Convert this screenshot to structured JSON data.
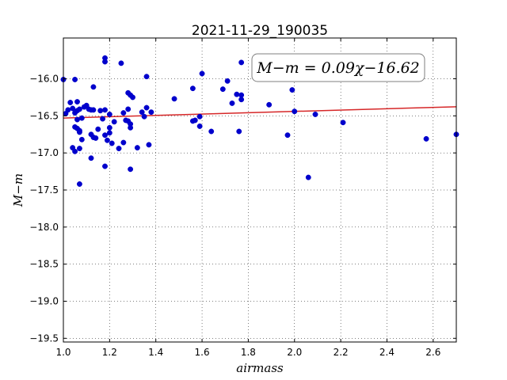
{
  "chart_data": {
    "type": "scatter",
    "title": "2021-11-29_190035",
    "xlabel": "airmass",
    "ylabel": "M−m",
    "xlim": [
      1.0,
      2.7
    ],
    "ylim": [
      -19.55,
      -15.45
    ],
    "x_ticks": [
      1.0,
      1.2,
      1.4,
      1.6,
      1.8,
      2.0,
      2.2,
      2.4,
      2.6
    ],
    "x_tick_labels": [
      "1.0",
      "1.2",
      "1.4",
      "1.6",
      "1.8",
      "2.0",
      "2.2",
      "2.4",
      "2.6"
    ],
    "y_ticks": [
      -16.0,
      -16.5,
      -17.0,
      -17.5,
      -18.0,
      -18.5,
      -19.0,
      -19.5
    ],
    "y_tick_labels": [
      "−16.0",
      "−16.5",
      "−17.0",
      "−17.5",
      "−18.0",
      "−18.5",
      "−19.0",
      "−19.5"
    ],
    "grid": true,
    "annotation": "M−m = 0.09χ−16.62",
    "fit": {
      "slope": 0.09,
      "intercept": -16.62,
      "color": "#d62728"
    },
    "point_color": "#0000cc",
    "points": [
      [
        1.0,
        -16.01
      ],
      [
        1.01,
        -16.47
      ],
      [
        1.02,
        -16.42
      ],
      [
        1.03,
        -16.32
      ],
      [
        1.04,
        -16.4
      ],
      [
        1.04,
        -16.93
      ],
      [
        1.05,
        -16.46
      ],
      [
        1.05,
        -16.65
      ],
      [
        1.05,
        -16.01
      ],
      [
        1.05,
        -16.98
      ],
      [
        1.06,
        -16.31
      ],
      [
        1.06,
        -16.43
      ],
      [
        1.06,
        -16.55
      ],
      [
        1.06,
        -16.67
      ],
      [
        1.07,
        -16.7
      ],
      [
        1.07,
        -16.72
      ],
      [
        1.07,
        -16.41
      ],
      [
        1.07,
        -16.94
      ],
      [
        1.07,
        -17.42
      ],
      [
        1.08,
        -16.53
      ],
      [
        1.08,
        -16.82
      ],
      [
        1.09,
        -16.38
      ],
      [
        1.1,
        -16.36
      ],
      [
        1.11,
        -16.41
      ],
      [
        1.12,
        -16.42
      ],
      [
        1.12,
        -16.75
      ],
      [
        1.12,
        -17.07
      ],
      [
        1.13,
        -16.11
      ],
      [
        1.13,
        -16.79
      ],
      [
        1.13,
        -16.42
      ],
      [
        1.14,
        -16.8
      ],
      [
        1.15,
        -16.68
      ],
      [
        1.16,
        -16.43
      ],
      [
        1.17,
        -16.54
      ],
      [
        1.18,
        -16.42
      ],
      [
        1.18,
        -16.76
      ],
      [
        1.18,
        -15.77
      ],
      [
        1.18,
        -15.72
      ],
      [
        1.18,
        -17.18
      ],
      [
        1.19,
        -16.83
      ],
      [
        1.2,
        -16.73
      ],
      [
        1.2,
        -16.66
      ],
      [
        1.2,
        -16.48
      ],
      [
        1.21,
        -16.87
      ],
      [
        1.22,
        -16.58
      ],
      [
        1.24,
        -16.94
      ],
      [
        1.25,
        -15.79
      ],
      [
        1.26,
        -16.86
      ],
      [
        1.26,
        -16.46
      ],
      [
        1.27,
        -16.56
      ],
      [
        1.28,
        -16.19
      ],
      [
        1.28,
        -16.57
      ],
      [
        1.28,
        -16.41
      ],
      [
        1.29,
        -16.22
      ],
      [
        1.29,
        -16.61
      ],
      [
        1.29,
        -16.66
      ],
      [
        1.29,
        -17.22
      ],
      [
        1.3,
        -16.25
      ],
      [
        1.32,
        -16.93
      ],
      [
        1.34,
        -16.45
      ],
      [
        1.35,
        -16.51
      ],
      [
        1.36,
        -15.97
      ],
      [
        1.36,
        -16.39
      ],
      [
        1.37,
        -16.89
      ],
      [
        1.38,
        -16.45
      ],
      [
        1.48,
        -16.27
      ],
      [
        1.56,
        -16.13
      ],
      [
        1.56,
        -16.57
      ],
      [
        1.57,
        -16.56
      ],
      [
        1.59,
        -16.64
      ],
      [
        1.59,
        -16.51
      ],
      [
        1.6,
        -15.93
      ],
      [
        1.64,
        -16.71
      ],
      [
        1.69,
        -16.14
      ],
      [
        1.71,
        -16.03
      ],
      [
        1.73,
        -16.33
      ],
      [
        1.75,
        -16.21
      ],
      [
        1.76,
        -16.71
      ],
      [
        1.77,
        -16.28
      ],
      [
        1.77,
        -16.22
      ],
      [
        1.77,
        -15.78
      ],
      [
        1.89,
        -16.35
      ],
      [
        1.97,
        -16.76
      ],
      [
        1.99,
        -16.15
      ],
      [
        2.0,
        -16.44
      ],
      [
        2.06,
        -17.33
      ],
      [
        2.09,
        -16.48
      ],
      [
        2.21,
        -16.59
      ],
      [
        2.57,
        -16.81
      ],
      [
        2.7,
        -16.75
      ]
    ]
  }
}
